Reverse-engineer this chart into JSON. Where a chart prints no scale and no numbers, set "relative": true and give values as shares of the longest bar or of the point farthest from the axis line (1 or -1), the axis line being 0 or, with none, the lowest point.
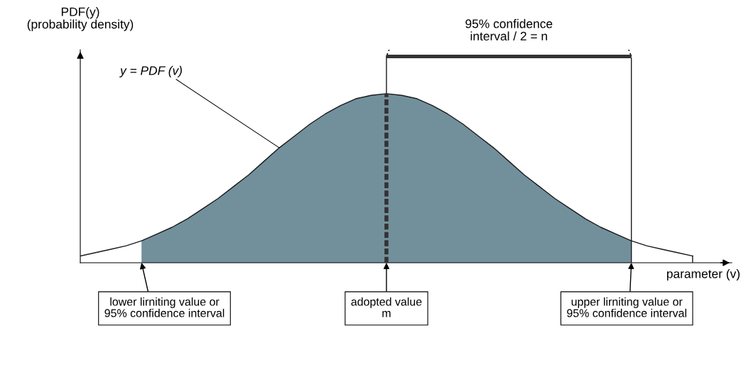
{
  "chart_data": {
    "type": "area",
    "relative": true,
    "xlabel": "parameter (v)",
    "categories": [
      null,
      null,
      null,
      null,
      null,
      null,
      null,
      null,
      null,
      null,
      null,
      null,
      null,
      null,
      null,
      null,
      null,
      null,
      null,
      null,
      null,
      null,
      null,
      null,
      null,
      null,
      null,
      null,
      null,
      null,
      null,
      null,
      null,
      null,
      null,
      null,
      null,
      null,
      null,
      null,
      null
    ],
    "series": [
      {
        "type": "line",
        "color": "#1a1a1a",
        "values": [
          0.04,
          0.06,
          0.08,
          0.1,
          0.13,
          0.17,
          0.21,
          0.26,
          0.32,
          0.38,
          0.45,
          0.52,
          0.6,
          0.68,
          0.75,
          0.82,
          0.88,
          0.93,
          0.97,
          0.99,
          1.0,
          0.99,
          0.97,
          0.93,
          0.88,
          0.82,
          0.75,
          0.68,
          0.6,
          0.52,
          0.45,
          0.38,
          0.32,
          0.26,
          0.21,
          0.17,
          0.13,
          0.1,
          0.08,
          0.06,
          0.04
        ]
      },
      {
        "color": "#72909c",
        "values": [
          null,
          null,
          null,
          null,
          0.13,
          0.17,
          0.21,
          0.26,
          0.32,
          0.38,
          0.45,
          0.52,
          0.6,
          0.68,
          0.75,
          0.82,
          0.88,
          0.93,
          0.97,
          0.99,
          1.0,
          0.99,
          0.97,
          0.93,
          0.88,
          0.82,
          0.75,
          0.68,
          0.6,
          0.52,
          0.45,
          0.38,
          0.32,
          0.26,
          0.21,
          0.17,
          0.13,
          null,
          null,
          null,
          null
        ]
      }
    ],
    "annotations": [
      "PDF(y)\n(probability density)",
      "y = PDF (v)",
      "95% confidence\ninterval / 2 = n",
      "lower lirniting value or\n95% confidence interval",
      "adopted value\nm",
      "upper lirniting value or\n95% confidence interval"
    ]
  }
}
